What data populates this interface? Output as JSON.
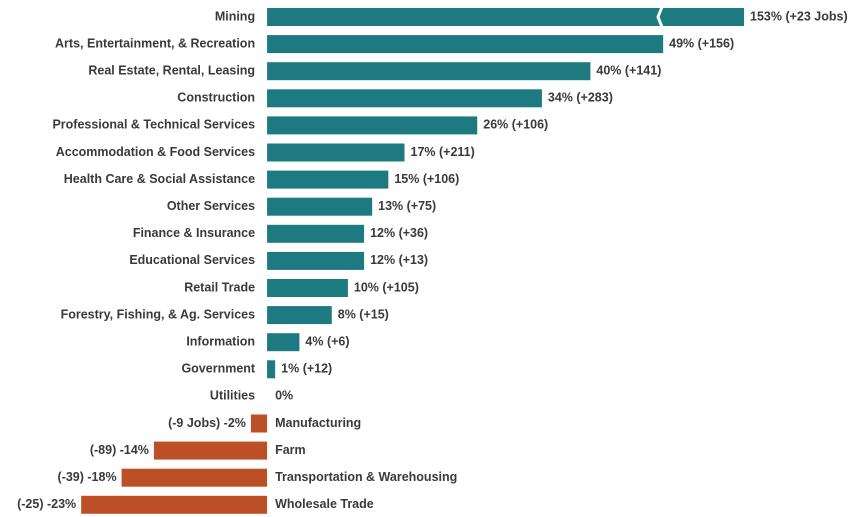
{
  "chart_data": {
    "type": "barh",
    "categories": [
      "Mining",
      "Arts, Entertainment, & Recreation",
      "Real Estate, Rental, Leasing",
      "Construction",
      "Professional & Technical Services",
      "Accommodation & Food Services",
      "Health Care & Social Assistance",
      "Other Services",
      "Finance & Insurance",
      "Educational Services",
      "Retail Trade",
      "Forestry, Fishing, & Ag. Services",
      "Information",
      "Government",
      "Utilities",
      "Manufacturing",
      "Farm",
      "Transportation & Warehousing",
      "Wholesale Trade"
    ],
    "values": [
      153,
      49,
      40,
      34,
      26,
      17,
      15,
      13,
      12,
      12,
      10,
      8,
      4,
      1,
      0,
      -2,
      -14,
      -18,
      -23
    ],
    "value_labels": [
      "153% (+23 Jobs)",
      "49% (+156)",
      "40% (+141)",
      "34% (+283)",
      "26% (+106)",
      "17% (+211)",
      "15% (+106)",
      "13% (+75)",
      "12% (+36)",
      "12% (+13)",
      "10% (+105)",
      "8% (+15)",
      "4% (+6)",
      "1% (+12)",
      "0%",
      "(-9 Jobs) -2%",
      "(-89) -14%",
      "(-39) -18%",
      "(-25) -23%"
    ],
    "color": "#1d7a80",
    "negative_color": "#bd4f27",
    "xlim": [
      -25,
      59
    ],
    "axis_break": true
  }
}
